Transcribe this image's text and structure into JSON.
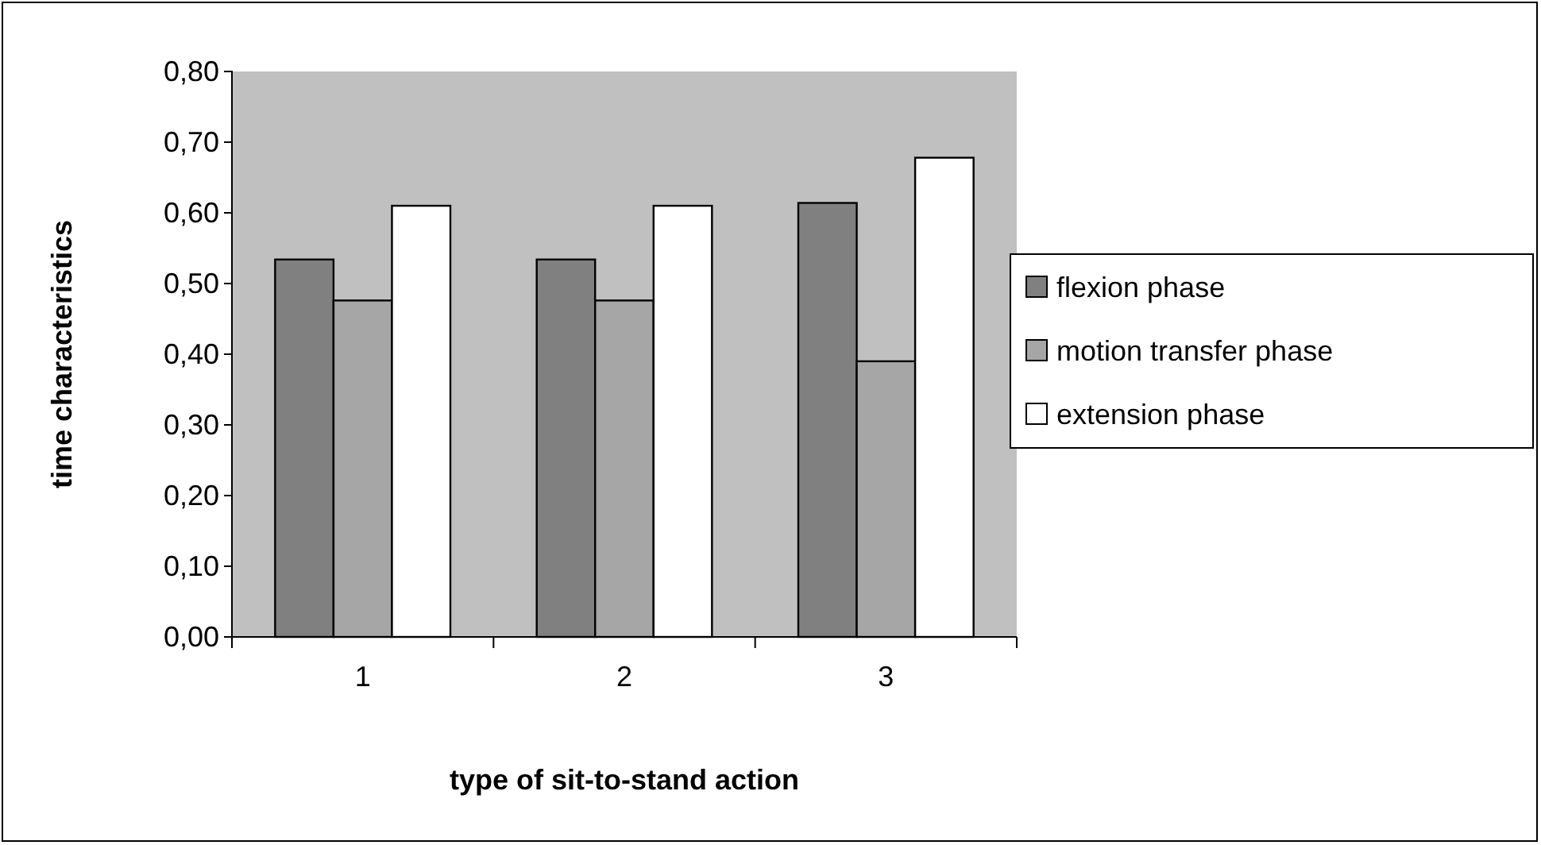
{
  "chart_data": {
    "type": "bar",
    "xlabel": "type of sit-to-stand action",
    "ylabel": "time characteristics",
    "categories": [
      "1",
      "2",
      "3"
    ],
    "series": [
      {
        "name": "flexion phase",
        "color": "#808080",
        "values": [
          0.534,
          0.534,
          0.614
        ]
      },
      {
        "name": "motion transfer phase",
        "color": "#a6a6a6",
        "values": [
          0.476,
          0.476,
          0.39
        ]
      },
      {
        "name": "extension phase",
        "color": "#ffffff",
        "values": [
          0.61,
          0.61,
          0.678
        ]
      }
    ],
    "ylim": [
      0,
      0.8
    ],
    "yticks": [
      {
        "value": 0,
        "label": "0,00"
      },
      {
        "value": 0.1,
        "label": "0,10"
      },
      {
        "value": 0.2,
        "label": "0,20"
      },
      {
        "value": 0.3,
        "label": "0,30"
      },
      {
        "value": 0.4,
        "label": "0,40"
      },
      {
        "value": 0.5,
        "label": "0,50"
      },
      {
        "value": 0.6,
        "label": "0,60"
      },
      {
        "value": 0.7,
        "label": "0,70"
      },
      {
        "value": 0.8,
        "label": "0,80"
      }
    ],
    "grid": false,
    "legend": "right"
  }
}
